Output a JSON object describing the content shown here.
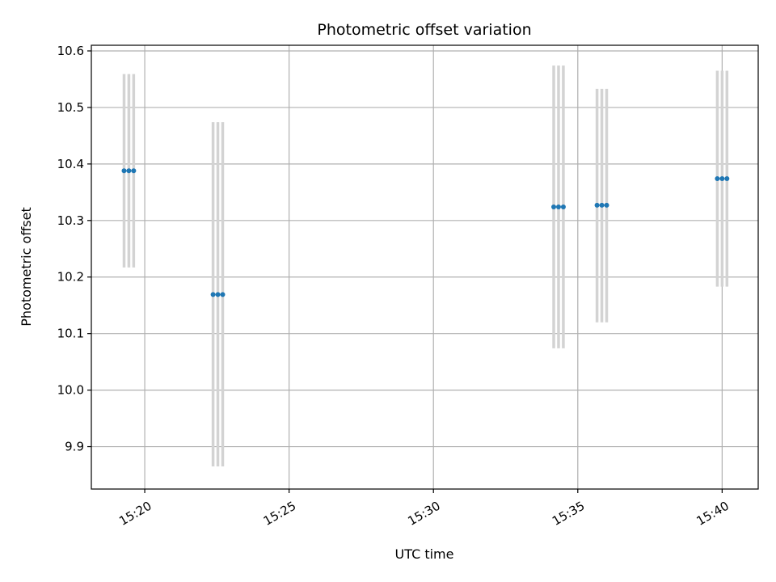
{
  "chart_data": {
    "type": "scatter",
    "title": "Photometric offset variation",
    "xlabel": "UTC time",
    "ylabel": "Photometric offset",
    "x_axis_type": "time",
    "xlim": [
      "15:18:09",
      "15:41:15"
    ],
    "ylim": [
      9.825,
      10.61
    ],
    "x_ticks": [
      "15:20",
      "15:25",
      "15:30",
      "15:35",
      "15:40"
    ],
    "y_ticks": [
      9.9,
      10.0,
      10.1,
      10.2,
      10.3,
      10.4,
      10.5,
      10.6
    ],
    "y_tick_labels": [
      "9.9",
      "10.0",
      "10.1",
      "10.2",
      "10.3",
      "10.4",
      "10.5",
      "10.6"
    ],
    "grid": true,
    "point_color": "#1f77b4",
    "errorbar_color": "#d3d3d3",
    "points": [
      {
        "x": "15:19:17",
        "y": 10.388,
        "yerr_low": 10.217,
        "yerr_high": 10.559
      },
      {
        "x": "15:19:27",
        "y": 10.388,
        "yerr_low": 10.217,
        "yerr_high": 10.559
      },
      {
        "x": "15:19:37",
        "y": 10.388,
        "yerr_low": 10.217,
        "yerr_high": 10.559
      },
      {
        "x": "15:22:22",
        "y": 10.169,
        "yerr_low": 9.865,
        "yerr_high": 10.474
      },
      {
        "x": "15:22:32",
        "y": 10.169,
        "yerr_low": 9.865,
        "yerr_high": 10.474
      },
      {
        "x": "15:22:42",
        "y": 10.169,
        "yerr_low": 9.865,
        "yerr_high": 10.474
      },
      {
        "x": "15:34:10",
        "y": 10.324,
        "yerr_low": 10.074,
        "yerr_high": 10.574
      },
      {
        "x": "15:34:20",
        "y": 10.324,
        "yerr_low": 10.074,
        "yerr_high": 10.574
      },
      {
        "x": "15:34:30",
        "y": 10.324,
        "yerr_low": 10.074,
        "yerr_high": 10.574
      },
      {
        "x": "15:35:40",
        "y": 10.327,
        "yerr_low": 10.12,
        "yerr_high": 10.533
      },
      {
        "x": "15:35:50",
        "y": 10.327,
        "yerr_low": 10.12,
        "yerr_high": 10.533
      },
      {
        "x": "15:36:00",
        "y": 10.327,
        "yerr_low": 10.12,
        "yerr_high": 10.533
      },
      {
        "x": "15:39:50",
        "y": 10.374,
        "yerr_low": 10.183,
        "yerr_high": 10.565
      },
      {
        "x": "15:40:00",
        "y": 10.374,
        "yerr_low": 10.183,
        "yerr_high": 10.565
      },
      {
        "x": "15:40:10",
        "y": 10.374,
        "yerr_low": 10.183,
        "yerr_high": 10.565
      }
    ]
  }
}
